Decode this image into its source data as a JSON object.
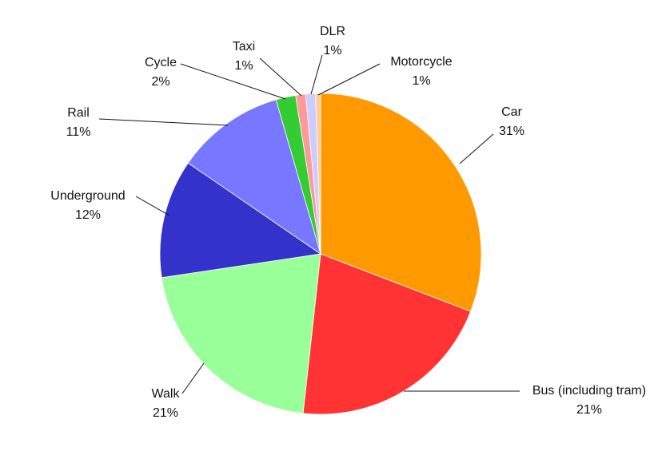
{
  "chart_data": {
    "type": "pie",
    "title": "",
    "slices": [
      {
        "label": "Car",
        "value": 31,
        "percent_label": "31%",
        "color": "#FF9900"
      },
      {
        "label": "Bus (including tram)",
        "value": 21,
        "percent_label": "21%",
        "color": "#FF3333"
      },
      {
        "label": "Walk",
        "value": 21,
        "percent_label": "21%",
        "color": "#99FF99"
      },
      {
        "label": "Underground",
        "value": 12,
        "percent_label": "12%",
        "color": "#3333CC"
      },
      {
        "label": "Rail",
        "value": 11,
        "percent_label": "11%",
        "color": "#7777FF"
      },
      {
        "label": "Cycle",
        "value": 2,
        "percent_label": "2%",
        "color": "#33CC33"
      },
      {
        "label": "Taxi",
        "value": 1,
        "percent_label": "1%",
        "color": "#FF9999"
      },
      {
        "label": "DLR",
        "value": 1,
        "percent_label": "1%",
        "color": "#CCCCFF"
      },
      {
        "label": "Motorcycle",
        "value": 0.5,
        "percent_label": "1%",
        "color": "#FFCC99"
      }
    ],
    "start_angle_deg": 0,
    "direction": "clockwise",
    "legend": "none"
  }
}
